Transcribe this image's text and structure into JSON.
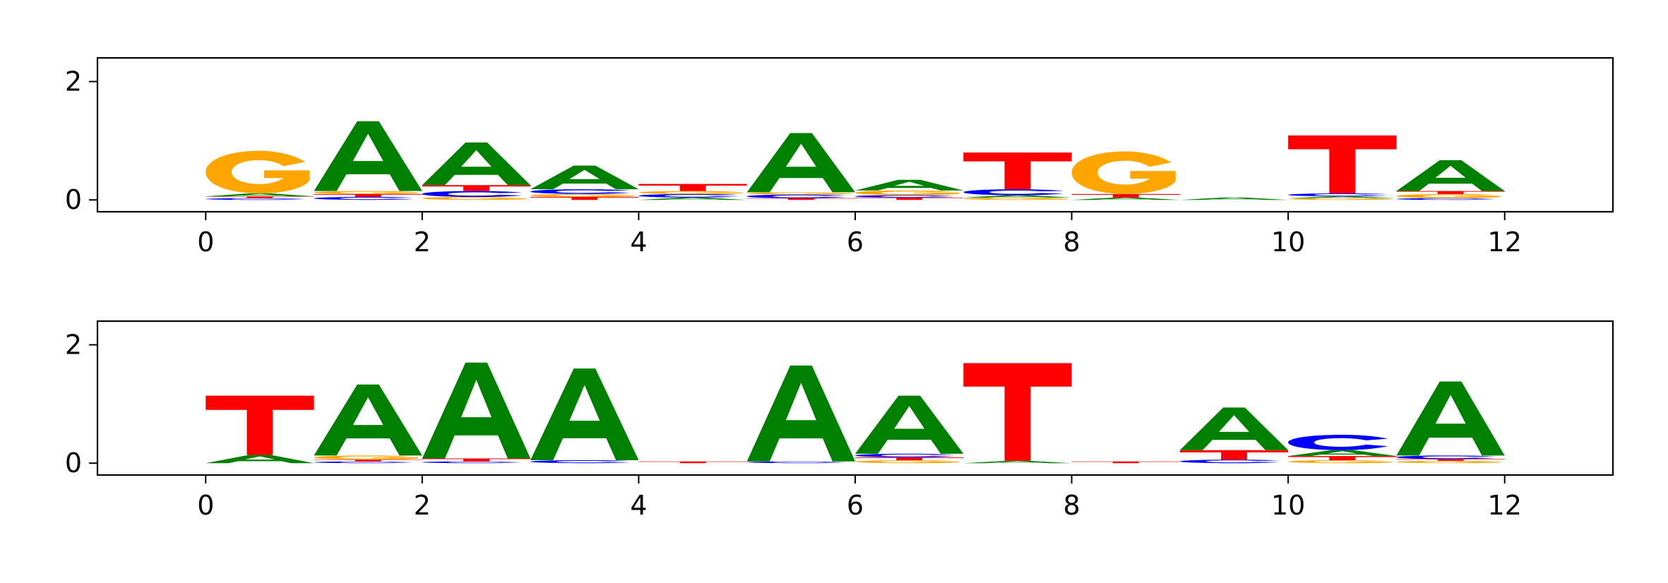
{
  "colors": {
    "A": "#008000",
    "C": "#0000ff",
    "G": "#ffa500",
    "T": "#ff0000",
    "axis": "#000000",
    "background": "#ffffff"
  },
  "chart_data": [
    {
      "type": "sequence-logo",
      "xlim": [
        -1,
        13
      ],
      "ylim": [
        -0.2,
        2.4
      ],
      "xticks": [
        "0",
        "2",
        "4",
        "6",
        "8",
        "10",
        "12"
      ],
      "yticks": [
        "0",
        "2"
      ],
      "positions": [
        {
          "x": 0,
          "letters": [
            {
              "base": "C",
              "height": 0.03
            },
            {
              "base": "T",
              "height": 0.03
            },
            {
              "base": "A",
              "height": 0.05
            },
            {
              "base": "G",
              "height": 0.72
            }
          ]
        },
        {
          "x": 1,
          "letters": [
            {
              "base": "C",
              "height": 0.05
            },
            {
              "base": "T",
              "height": 0.05
            },
            {
              "base": "G",
              "height": 0.05
            },
            {
              "base": "A",
              "height": 1.18
            }
          ]
        },
        {
          "x": 2,
          "letters": [
            {
              "base": "G",
              "height": 0.05
            },
            {
              "base": "C",
              "height": 0.1
            },
            {
              "base": "T",
              "height": 0.1
            },
            {
              "base": "A",
              "height": 0.72
            }
          ]
        },
        {
          "x": 3,
          "letters": [
            {
              "base": "T",
              "height": 0.05
            },
            {
              "base": "G",
              "height": 0.05
            },
            {
              "base": "C",
              "height": 0.08
            },
            {
              "base": "A",
              "height": 0.4
            }
          ]
        },
        {
          "x": 4,
          "letters": [
            {
              "base": "A",
              "height": 0.04
            },
            {
              "base": "C",
              "height": 0.06
            },
            {
              "base": "G",
              "height": 0.05
            },
            {
              "base": "T",
              "height": 0.12
            }
          ]
        },
        {
          "x": 5,
          "letters": [
            {
              "base": "T",
              "height": 0.03
            },
            {
              "base": "C",
              "height": 0.06
            },
            {
              "base": "G",
              "height": 0.04
            },
            {
              "base": "A",
              "height": 1.0
            }
          ]
        },
        {
          "x": 6,
          "letters": [
            {
              "base": "T",
              "height": 0.04
            },
            {
              "base": "C",
              "height": 0.04
            },
            {
              "base": "G",
              "height": 0.08
            },
            {
              "base": "A",
              "height": 0.18
            }
          ]
        },
        {
          "x": 7,
          "letters": [
            {
              "base": "G",
              "height": 0.04
            },
            {
              "base": "A",
              "height": 0.04
            },
            {
              "base": "C",
              "height": 0.1
            },
            {
              "base": "T",
              "height": 0.62
            }
          ]
        },
        {
          "x": 8,
          "letters": [
            {
              "base": "A",
              "height": 0.04
            },
            {
              "base": "T",
              "height": 0.06
            },
            {
              "base": "G",
              "height": 0.72
            }
          ]
        },
        {
          "x": 9,
          "letters": [
            {
              "base": "A",
              "height": 0.04
            }
          ]
        },
        {
          "x": 10,
          "letters": [
            {
              "base": "G",
              "height": 0.03
            },
            {
              "base": "A",
              "height": 0.03
            },
            {
              "base": "C",
              "height": 0.05
            },
            {
              "base": "T",
              "height": 0.98
            }
          ]
        },
        {
          "x": 11,
          "letters": [
            {
              "base": "C",
              "height": 0.03
            },
            {
              "base": "G",
              "height": 0.07
            },
            {
              "base": "T",
              "height": 0.05
            },
            {
              "base": "A",
              "height": 0.52
            }
          ]
        }
      ]
    },
    {
      "type": "sequence-logo",
      "xlim": [
        -1,
        13
      ],
      "ylim": [
        -0.2,
        2.4
      ],
      "xticks": [
        "0",
        "2",
        "4",
        "6",
        "8",
        "10",
        "12"
      ],
      "yticks": [
        "0",
        "2"
      ],
      "positions": [
        {
          "x": 0,
          "letters": [
            {
              "base": "A",
              "height": 0.14
            },
            {
              "base": "T",
              "height": 1.0
            }
          ]
        },
        {
          "x": 1,
          "letters": [
            {
              "base": "C",
              "height": 0.03
            },
            {
              "base": "T",
              "height": 0.03
            },
            {
              "base": "G",
              "height": 0.07
            },
            {
              "base": "A",
              "height": 1.2
            }
          ]
        },
        {
          "x": 2,
          "letters": [
            {
              "base": "C",
              "height": 0.03
            },
            {
              "base": "T",
              "height": 0.05
            },
            {
              "base": "A",
              "height": 1.62
            }
          ]
        },
        {
          "x": 3,
          "letters": [
            {
              "base": "C",
              "height": 0.05
            },
            {
              "base": "A",
              "height": 1.55
            }
          ]
        },
        {
          "x": 4,
          "letters": [
            {
              "base": "T",
              "height": 0.03
            }
          ]
        },
        {
          "x": 5,
          "letters": [
            {
              "base": "C",
              "height": 0.03
            },
            {
              "base": "A",
              "height": 1.62
            }
          ]
        },
        {
          "x": 6,
          "letters": [
            {
              "base": "G",
              "height": 0.05
            },
            {
              "base": "T",
              "height": 0.05
            },
            {
              "base": "C",
              "height": 0.06
            },
            {
              "base": "A",
              "height": 0.98
            }
          ]
        },
        {
          "x": 7,
          "letters": [
            {
              "base": "A",
              "height": 0.04
            },
            {
              "base": "T",
              "height": 1.65
            }
          ]
        },
        {
          "x": 8,
          "letters": [
            {
              "base": "T",
              "height": 0.03
            }
          ]
        },
        {
          "x": 9,
          "letters": [
            {
              "base": "C",
              "height": 0.06
            },
            {
              "base": "T",
              "height": 0.16
            },
            {
              "base": "A",
              "height": 0.72
            }
          ]
        },
        {
          "x": 10,
          "letters": [
            {
              "base": "G",
              "height": 0.05
            },
            {
              "base": "T",
              "height": 0.07
            },
            {
              "base": "A",
              "height": 0.1
            },
            {
              "base": "C",
              "height": 0.26
            }
          ]
        },
        {
          "x": 11,
          "letters": [
            {
              "base": "G",
              "height": 0.04
            },
            {
              "base": "T",
              "height": 0.03
            },
            {
              "base": "C",
              "height": 0.06
            },
            {
              "base": "A",
              "height": 1.25
            }
          ]
        }
      ]
    }
  ]
}
